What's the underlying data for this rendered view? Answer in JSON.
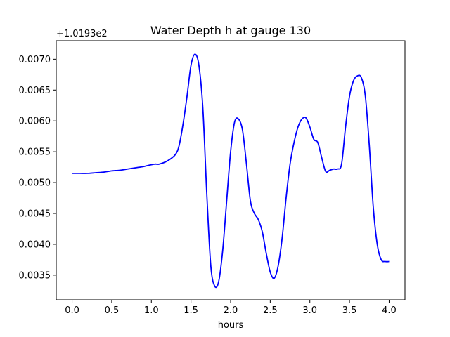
{
  "chart_data": {
    "type": "line",
    "title": "Water Depth h at gauge 130",
    "xlabel": "hours",
    "ylabel": "",
    "y_offset_label": "+1.0193e2",
    "y_offset_value": 101.93,
    "xlim": [
      -0.2,
      4.2
    ],
    "ylim": [
      0.0031,
      0.0073
    ],
    "x_ticks": [
      0.0,
      0.5,
      1.0,
      1.5,
      2.0,
      2.5,
      3.0,
      3.5,
      4.0
    ],
    "x_tick_labels": [
      "0.0",
      "0.5",
      "1.0",
      "1.5",
      "2.0",
      "2.5",
      "3.0",
      "3.5",
      "4.0"
    ],
    "y_ticks": [
      0.0035,
      0.004,
      0.0045,
      0.005,
      0.0055,
      0.006,
      0.0065,
      0.007
    ],
    "y_tick_labels": [
      "0.0035",
      "0.0040",
      "0.0045",
      "0.0050",
      "0.0055",
      "0.0060",
      "0.0065",
      "0.0070"
    ],
    "grid": false,
    "series": [
      {
        "color": "#0000ff",
        "x": [
          0.0,
          0.1,
          0.2,
          0.3,
          0.4,
          0.5,
          0.6,
          0.7,
          0.8,
          0.9,
          1.0,
          1.05,
          1.1,
          1.2,
          1.3,
          1.35,
          1.4,
          1.45,
          1.5,
          1.55,
          1.6,
          1.65,
          1.7,
          1.75,
          1.8,
          1.85,
          1.9,
          1.95,
          2.0,
          2.05,
          2.1,
          2.15,
          2.2,
          2.25,
          2.3,
          2.35,
          2.4,
          2.45,
          2.5,
          2.55,
          2.6,
          2.65,
          2.7,
          2.75,
          2.8,
          2.85,
          2.9,
          2.95,
          3.0,
          3.05,
          3.1,
          3.15,
          3.2,
          3.25,
          3.3,
          3.35,
          3.4,
          3.45,
          3.5,
          3.55,
          3.6,
          3.65,
          3.7,
          3.75,
          3.8,
          3.85,
          3.9,
          3.95,
          4.0
        ],
        "y": [
          0.00515,
          0.00515,
          0.00515,
          0.00516,
          0.00517,
          0.00519,
          0.0052,
          0.00522,
          0.00524,
          0.00526,
          0.00529,
          0.0053,
          0.0053,
          0.00535,
          0.00545,
          0.0056,
          0.00595,
          0.0064,
          0.0069,
          0.00708,
          0.0069,
          0.0062,
          0.0048,
          0.00365,
          0.00332,
          0.0034,
          0.0039,
          0.0047,
          0.0055,
          0.00598,
          0.00603,
          0.00585,
          0.0053,
          0.0047,
          0.0045,
          0.0044,
          0.0042,
          0.00385,
          0.00355,
          0.00345,
          0.00365,
          0.0041,
          0.00475,
          0.0053,
          0.00565,
          0.0059,
          0.00603,
          0.00605,
          0.0059,
          0.0057,
          0.00565,
          0.0054,
          0.00518,
          0.0052,
          0.00522,
          0.00522,
          0.0053,
          0.0059,
          0.0064,
          0.00665,
          0.00673,
          0.0067,
          0.0064,
          0.0056,
          0.0046,
          0.004,
          0.00375,
          0.00372,
          0.00372
        ]
      }
    ]
  }
}
